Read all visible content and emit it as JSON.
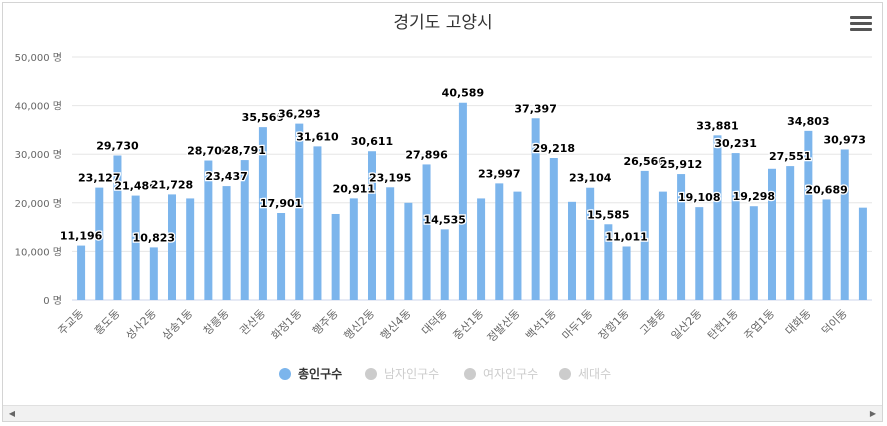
{
  "chart_data": {
    "type": "bar",
    "title": "경기도 고양시",
    "y_tick_labels": [
      "0 명",
      "10,000 명",
      "20,000 명",
      "30,000 명",
      "40,000 명",
      "50,000 명"
    ],
    "ylim": [
      0,
      50000
    ],
    "categories": [
      "주교동",
      "",
      "흥도동",
      "",
      "성사2동",
      "",
      "삼송1동",
      "",
      "창릉동",
      "",
      "관산동",
      "",
      "화정1동",
      "",
      "행주동",
      "",
      "행신2동",
      "",
      "행신4동",
      "",
      "대덕동",
      "",
      "중산1동",
      "",
      "정발산동",
      "",
      "백석1동",
      "",
      "마두1동",
      "",
      "장항1동",
      "",
      "고봉동",
      "",
      "일산2동",
      "",
      "탄현1동",
      "",
      "주엽1동",
      "",
      "대화동",
      "",
      "덕이동",
      ""
    ],
    "values": [
      11196,
      23127,
      29730,
      21486,
      10823,
      21728,
      20900,
      28700,
      23437,
      28791,
      35569,
      17901,
      36293,
      31610,
      17700,
      20911,
      30611,
      23195,
      20000,
      27896,
      14535,
      40589,
      20900,
      23997,
      22300,
      37397,
      29218,
      20200,
      23104,
      15585,
      11011,
      26566,
      22300,
      25912,
      19108,
      33881,
      30231,
      19298,
      27000,
      27551,
      34803,
      20689,
      30973,
      19000
    ],
    "data_labels": [
      "11,196",
      "23,127",
      "29,730",
      "21,486",
      "10,823",
      "21,728",
      "",
      "28,700",
      "23,437",
      "28,791",
      "35,569",
      "17,901",
      "36,293",
      "31,610",
      "",
      "20,911",
      "30,611",
      "23,195",
      "",
      "27,896",
      "14,535",
      "40,589",
      "",
      "23,997",
      "",
      "37,397",
      "29,218",
      "",
      "23,104",
      "15,585",
      "11,011",
      "26,566",
      "",
      "25,912",
      "19,108",
      "33,881",
      "30,231",
      "19,298",
      "",
      "27,551",
      "34,803",
      "20,689",
      "30,973",
      ""
    ],
    "series": [
      {
        "name": "총인구수",
        "active": true
      },
      {
        "name": "남자인구수",
        "active": false
      },
      {
        "name": "여자인구수",
        "active": false
      },
      {
        "name": "세대수",
        "active": false
      }
    ],
    "bar_color": "#7cb5ec",
    "inactive_color": "#cccccc",
    "grid": true,
    "legend_position": "bottom"
  }
}
